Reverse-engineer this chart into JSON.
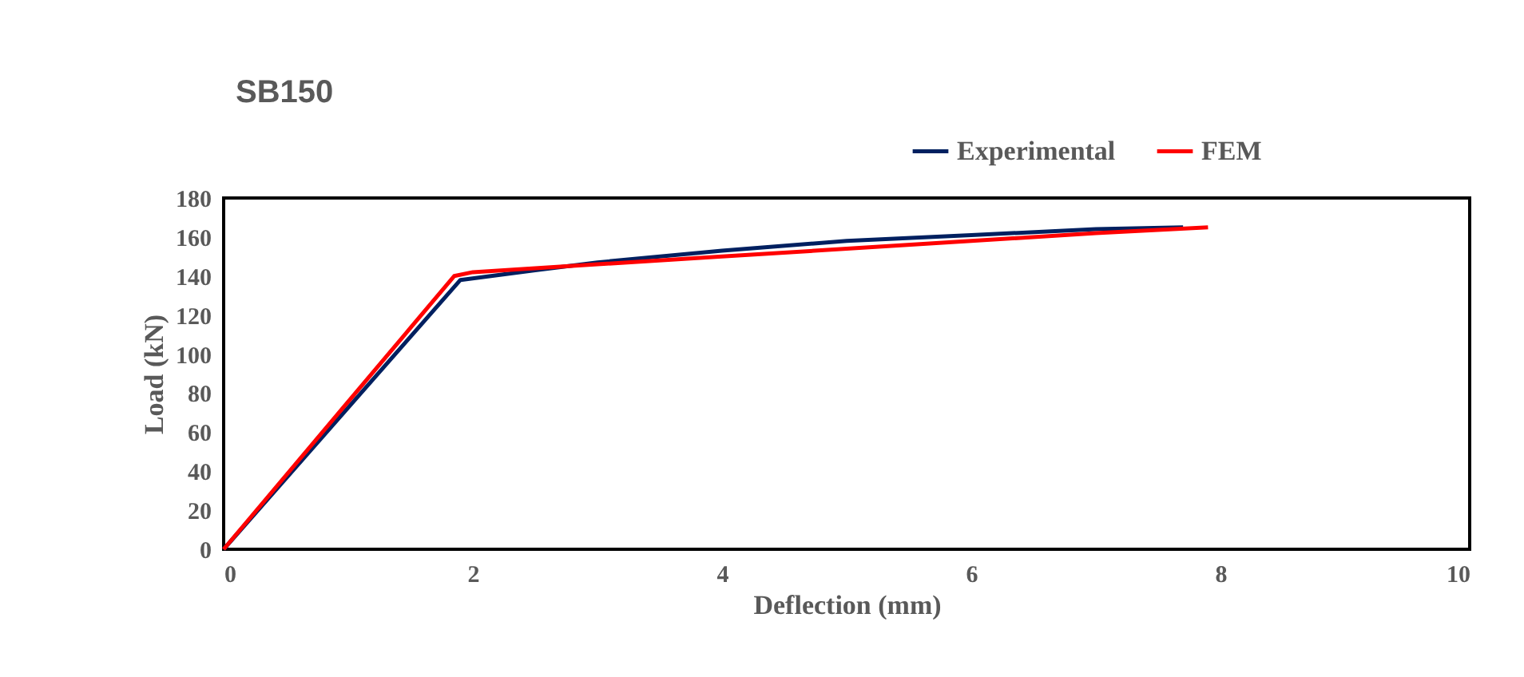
{
  "chart_data": {
    "type": "line",
    "title": "SB150",
    "xlabel": "Deflection (mm)",
    "ylabel": "Load (kN)",
    "xlim": [
      0,
      10
    ],
    "xticks": [
      0,
      2,
      4,
      6,
      8,
      10
    ],
    "ylim": [
      0,
      180
    ],
    "yticks": [
      0,
      20,
      40,
      60,
      80,
      100,
      120,
      140,
      160,
      180
    ],
    "grid": false,
    "legend": "top right",
    "marker": "none",
    "line_style": "solid",
    "series": [
      {
        "name": "Experimental",
        "color": "#002060",
        "x": [
          0,
          1.9,
          2.5,
          3,
          4,
          5,
          6,
          7,
          7.7
        ],
        "values": [
          0,
          138,
          143,
          147,
          153,
          158,
          161,
          164,
          165
        ]
      },
      {
        "name": "FEM",
        "color": "#ff0000",
        "x": [
          0,
          1.85,
          2,
          3,
          4,
          5,
          6,
          7,
          7.9
        ],
        "values": [
          0,
          140,
          142,
          146,
          150,
          154,
          158,
          162,
          165
        ]
      }
    ]
  }
}
